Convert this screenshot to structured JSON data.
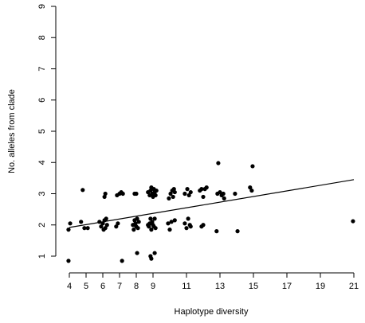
{
  "chart_data": {
    "type": "scatter",
    "title": "",
    "xlabel": "Haplotype diversity",
    "ylabel": "No. alleles from clade",
    "xlim": [
      4,
      21
    ],
    "ylim": [
      1,
      9
    ],
    "xticks": [
      4,
      5,
      6,
      7,
      8,
      9,
      11,
      13,
      15,
      17,
      19,
      21
    ],
    "yticks": [
      1,
      2,
      3,
      4,
      5,
      6,
      7,
      8,
      9
    ],
    "grid": false,
    "legend": "none",
    "point_color": "#000000",
    "points": [
      [
        3.95,
        0.85
      ],
      [
        3.95,
        1.85
      ],
      [
        4.05,
        2.05
      ],
      [
        4.7,
        2.1
      ],
      [
        4.8,
        3.12
      ],
      [
        4.9,
        1.9
      ],
      [
        5.1,
        1.9
      ],
      [
        5.8,
        2.1
      ],
      [
        5.9,
        1.95
      ],
      [
        6.0,
        2.05
      ],
      [
        6.05,
        1.85
      ],
      [
        6.1,
        2.15
      ],
      [
        6.15,
        1.9
      ],
      [
        6.2,
        2.2
      ],
      [
        6.25,
        2.0
      ],
      [
        6.1,
        2.9
      ],
      [
        6.15,
        3.0
      ],
      [
        6.8,
        1.95
      ],
      [
        6.9,
        2.05
      ],
      [
        6.85,
        2.95
      ],
      [
        7.0,
        3.0
      ],
      [
        7.1,
        3.05
      ],
      [
        7.2,
        3.0
      ],
      [
        7.15,
        0.85
      ],
      [
        7.8,
        2.0
      ],
      [
        7.85,
        1.85
      ],
      [
        7.9,
        2.15
      ],
      [
        7.95,
        2.05
      ],
      [
        8.0,
        1.95
      ],
      [
        8.05,
        2.2
      ],
      [
        8.1,
        1.9
      ],
      [
        8.15,
        2.1
      ],
      [
        7.9,
        3.0
      ],
      [
        8.0,
        3.0
      ],
      [
        8.05,
        1.1
      ],
      [
        8.7,
        2.0
      ],
      [
        8.75,
        1.95
      ],
      [
        8.8,
        2.05
      ],
      [
        8.85,
        2.2
      ],
      [
        8.9,
        1.85
      ],
      [
        8.95,
        2.1
      ],
      [
        9.0,
        2.0
      ],
      [
        9.05,
        1.95
      ],
      [
        9.1,
        2.2
      ],
      [
        9.15,
        1.9
      ],
      [
        8.7,
        3.05
      ],
      [
        8.8,
        2.95
      ],
      [
        8.85,
        3.1
      ],
      [
        8.9,
        3.2
      ],
      [
        8.95,
        3.0
      ],
      [
        9.0,
        2.9
      ],
      [
        9.05,
        3.15
      ],
      [
        9.1,
        3.05
      ],
      [
        9.15,
        2.95
      ],
      [
        9.2,
        3.1
      ],
      [
        8.85,
        1.0
      ],
      [
        8.9,
        0.92
      ],
      [
        9.1,
        1.1
      ],
      [
        9.9,
        2.05
      ],
      [
        10.0,
        1.85
      ],
      [
        10.1,
        2.1
      ],
      [
        10.3,
        2.15
      ],
      [
        9.95,
        2.85
      ],
      [
        10.05,
        3.0
      ],
      [
        10.15,
        3.1
      ],
      [
        10.2,
        2.9
      ],
      [
        10.25,
        3.15
      ],
      [
        10.3,
        3.05
      ],
      [
        10.9,
        2.05
      ],
      [
        11.0,
        1.9
      ],
      [
        11.1,
        2.2
      ],
      [
        11.2,
        2.0
      ],
      [
        11.25,
        1.95
      ],
      [
        10.9,
        3.0
      ],
      [
        11.05,
        3.15
      ],
      [
        11.15,
        2.95
      ],
      [
        11.25,
        3.05
      ],
      [
        11.9,
        1.95
      ],
      [
        12.0,
        2.0
      ],
      [
        11.8,
        3.1
      ],
      [
        11.9,
        3.15
      ],
      [
        12.0,
        2.9
      ],
      [
        12.1,
        3.15
      ],
      [
        12.2,
        3.2
      ],
      [
        12.8,
        1.8
      ],
      [
        12.85,
        3.0
      ],
      [
        12.9,
        3.98
      ],
      [
        13.0,
        3.05
      ],
      [
        13.1,
        2.95
      ],
      [
        13.2,
        3.0
      ],
      [
        13.25,
        2.85
      ],
      [
        13.9,
        3.0
      ],
      [
        14.05,
        1.8
      ],
      [
        14.8,
        3.2
      ],
      [
        14.9,
        3.1
      ],
      [
        14.95,
        3.88
      ],
      [
        20.95,
        2.12
      ]
    ],
    "trend_line": {
      "x": [
        4,
        21
      ],
      "y": [
        1.92,
        3.45
      ]
    }
  }
}
